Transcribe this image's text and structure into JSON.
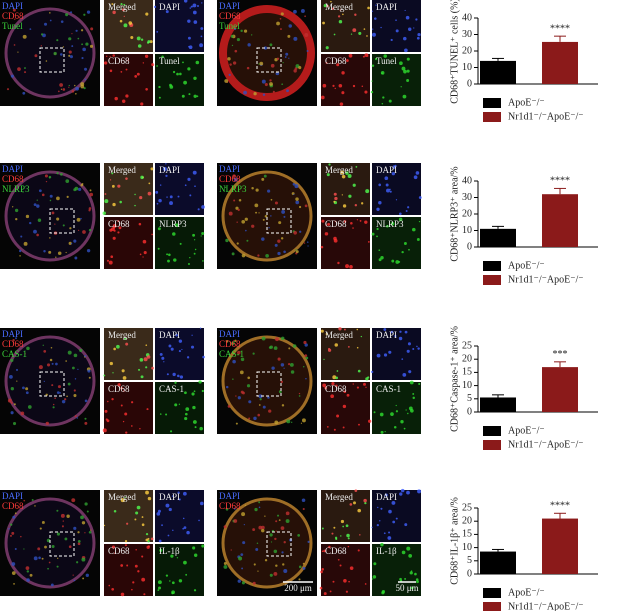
{
  "chart_data": [
    {
      "type": "bar",
      "y_label": "CD68⁺TUNEL⁺ cells (%)",
      "ylim": [
        0,
        40
      ],
      "yticks": [
        0,
        10,
        20,
        30,
        40
      ],
      "annotation": "****",
      "series": [
        {
          "name": "ApoE⁻/⁻",
          "color": "#000000",
          "values": [
            14
          ],
          "errors": [
            1.5
          ]
        },
        {
          "name": "Nr1d1⁻/⁻ApoE⁻/⁻",
          "color": "#8b1a1a",
          "values": [
            25.5
          ],
          "errors": [
            3.5
          ]
        }
      ]
    },
    {
      "type": "bar",
      "y_label": "CD68⁺NLRP3⁺ area/%",
      "ylim": [
        0,
        40
      ],
      "yticks": [
        0,
        10,
        20,
        30,
        40
      ],
      "annotation": "****",
      "series": [
        {
          "name": "ApoE⁻/⁻",
          "color": "#000000",
          "values": [
            11
          ],
          "errors": [
            1.5
          ]
        },
        {
          "name": "Nr1d1⁻/⁻ApoE⁻/⁻",
          "color": "#8b1a1a",
          "values": [
            32
          ],
          "errors": [
            3.5
          ]
        }
      ]
    },
    {
      "type": "bar",
      "y_label": "CD68⁺Caspase-1⁺ area/%",
      "ylim": [
        0,
        25
      ],
      "yticks": [
        0,
        5,
        10,
        15,
        20,
        25
      ],
      "annotation": "***",
      "series": [
        {
          "name": "ApoE⁻/⁻",
          "color": "#000000",
          "values": [
            5.5
          ],
          "errors": [
            1
          ]
        },
        {
          "name": "Nr1d1⁻/⁻ApoE⁻/⁻",
          "color": "#8b1a1a",
          "values": [
            17
          ],
          "errors": [
            2
          ]
        }
      ]
    },
    {
      "type": "bar",
      "y_label": "CD68⁺IL-1β⁺ area/%",
      "ylim": [
        0,
        25
      ],
      "yticks": [
        0,
        5,
        10,
        15,
        20,
        25
      ],
      "annotation": "****",
      "series": [
        {
          "name": "ApoE⁻/⁻",
          "color": "#000000",
          "values": [
            8.5
          ],
          "errors": [
            0.8
          ]
        },
        {
          "name": "Nr1d1⁻/⁻ApoE⁻/⁻",
          "color": "#8b1a1a",
          "values": [
            21
          ],
          "errors": [
            2
          ]
        }
      ]
    }
  ],
  "image_rows": [
    {
      "groups": [
        {
          "channels": [
            "DAPI",
            "CD68",
            "Tunel"
          ],
          "tiles": [
            "Merged",
            "DAPI",
            "CD68",
            "Tunel"
          ]
        },
        {
          "channels": [
            "DAPI",
            "CD68",
            "Tunel"
          ],
          "tiles": [
            "Merged",
            "DAPI",
            "CD68",
            "Tunel"
          ]
        }
      ]
    },
    {
      "groups": [
        {
          "channels": [
            "DAPI",
            "CD68",
            "NLRP3"
          ],
          "tiles": [
            "Merged",
            "DAPI",
            "CD68",
            "NLRP3"
          ]
        },
        {
          "channels": [
            "DAPI",
            "CD68",
            "NLRP3"
          ],
          "tiles": [
            "Merged",
            "DAPI",
            "CD68",
            "NLRP3"
          ]
        }
      ]
    },
    {
      "groups": [
        {
          "channels": [
            "DAPI",
            "CD68",
            "CAS-1"
          ],
          "tiles": [
            "Merged",
            "DAPI",
            "CD68",
            "CAS-1"
          ]
        },
        {
          "channels": [
            "DAPI",
            "CD68",
            "CAS-1"
          ],
          "tiles": [
            "Merged",
            "DAPI",
            "CD68",
            "CAS-1"
          ]
        }
      ]
    },
    {
      "groups": [
        {
          "channels": [
            "DAPI",
            "CD68"
          ],
          "tiles": [
            "Merged",
            "DAPI",
            "CD68",
            "IL-1β"
          ]
        },
        {
          "channels": [
            "DAPI",
            "CD68"
          ],
          "tiles": [
            "Merged",
            "DAPI",
            "CD68",
            "IL-1β"
          ]
        }
      ]
    }
  ],
  "scale_bars": [
    "200 μm",
    "50 μm"
  ]
}
